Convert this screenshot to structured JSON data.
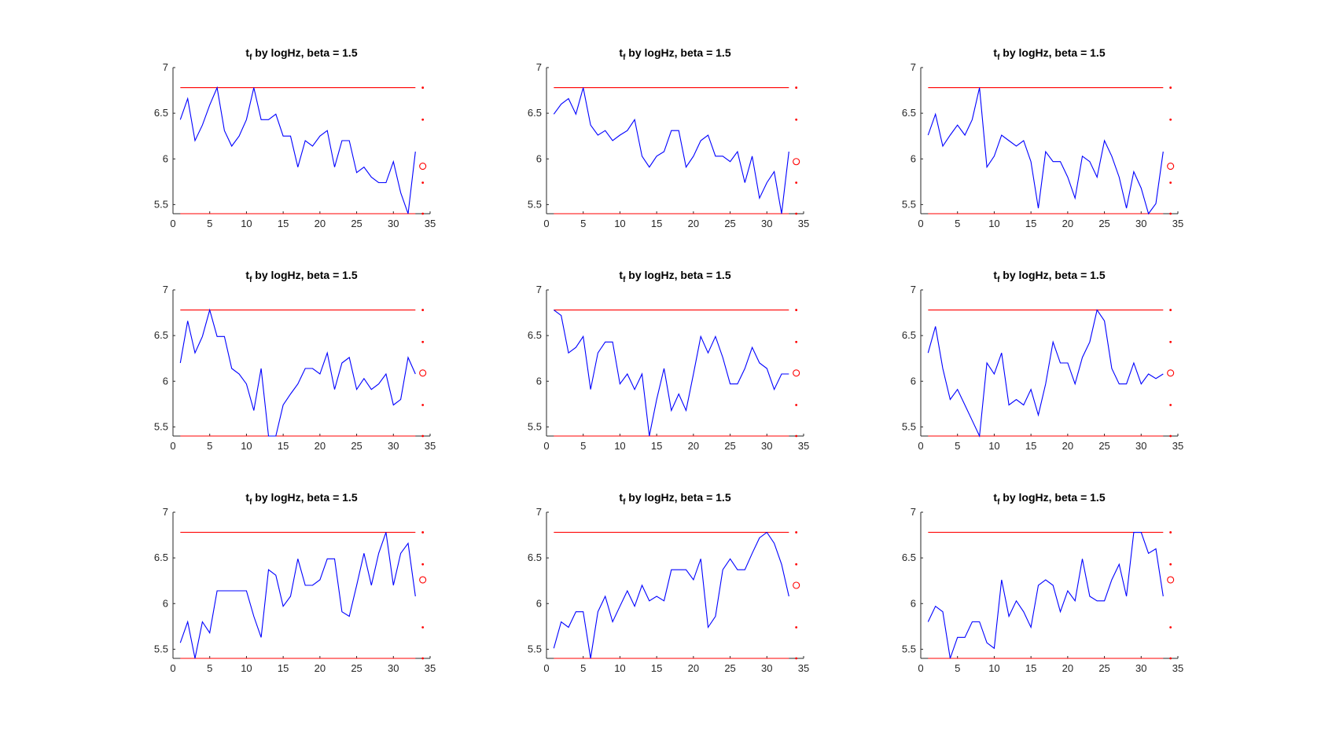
{
  "figure": {
    "background": "#ffffff"
  },
  "colors": {
    "series": "#0000ff",
    "threshold": "#ff0000",
    "axis": "#262626",
    "marker": "#ff0000"
  },
  "chart_data": [
    {
      "type": "line",
      "title": "t_f by logHz, beta = 1.5",
      "title_parts": {
        "base": "t",
        "sub": "f",
        "rest": " by logHz, beta = 1.5"
      },
      "xlim": [
        0,
        35
      ],
      "ylim": [
        5.4,
        7
      ],
      "xticks": [
        0,
        5,
        10,
        15,
        20,
        25,
        30,
        35
      ],
      "yticks": [
        5.5,
        6,
        6.5,
        7
      ],
      "xtick_labels": [
        "0",
        "5",
        "10",
        "15",
        "20",
        "25",
        "30",
        "35"
      ],
      "ytick_labels": [
        "5.5",
        "6",
        "6.5",
        "7"
      ],
      "x": [
        1,
        2,
        3,
        4,
        5,
        6,
        7,
        8,
        9,
        10,
        11,
        12,
        13,
        14,
        15,
        16,
        17,
        18,
        19,
        20,
        21,
        22,
        23,
        24,
        25,
        26,
        27,
        28,
        29,
        30,
        31,
        32,
        33
      ],
      "series": [
        {
          "values": [
            6.43,
            6.66,
            6.2,
            6.37,
            6.59,
            6.78,
            6.31,
            6.14,
            6.25,
            6.43,
            6.78,
            6.43,
            6.43,
            6.49,
            6.25,
            6.25,
            5.91,
            6.2,
            6.14,
            6.25,
            6.31,
            5.91,
            6.2,
            6.2,
            5.85,
            5.91,
            5.8,
            5.74,
            5.74,
            5.97,
            5.63,
            5.4,
            6.08
          ],
          "color": "#0000ff"
        }
      ],
      "hlines": [
        6.78,
        5.4
      ],
      "side_x": 34,
      "side_dots": [
        6.78,
        6.43,
        5.74,
        5.4
      ],
      "side_circle": 5.92
    },
    {
      "type": "line",
      "title": "t_f by logHz, beta = 1.5",
      "title_parts": {
        "base": "t",
        "sub": "f",
        "rest": " by logHz, beta = 1.5"
      },
      "xlim": [
        0,
        35
      ],
      "ylim": [
        5.4,
        7
      ],
      "xticks": [
        0,
        5,
        10,
        15,
        20,
        25,
        30,
        35
      ],
      "yticks": [
        5.5,
        6,
        6.5,
        7
      ],
      "xtick_labels": [
        "0",
        "5",
        "10",
        "15",
        "20",
        "25",
        "30",
        "35"
      ],
      "ytick_labels": [
        "5.5",
        "6",
        "6.5",
        "7"
      ],
      "x": [
        1,
        2,
        3,
        4,
        5,
        6,
        7,
        8,
        9,
        10,
        11,
        12,
        13,
        14,
        15,
        16,
        17,
        18,
        19,
        20,
        21,
        22,
        23,
        24,
        25,
        26,
        27,
        28,
        29,
        30,
        31,
        32,
        33
      ],
      "series": [
        {
          "values": [
            6.49,
            6.6,
            6.66,
            6.49,
            6.78,
            6.37,
            6.26,
            6.31,
            6.2,
            6.26,
            6.31,
            6.43,
            6.03,
            5.91,
            6.03,
            6.08,
            6.31,
            6.31,
            5.91,
            6.03,
            6.2,
            6.26,
            6.03,
            6.03,
            5.97,
            6.08,
            5.74,
            6.03,
            5.57,
            5.74,
            5.86,
            5.4,
            6.08
          ],
          "color": "#0000ff"
        }
      ],
      "hlines": [
        6.78,
        5.4
      ],
      "side_x": 34,
      "side_dots": [
        6.78,
        6.43,
        5.74,
        5.4
      ],
      "side_circle": 5.97
    },
    {
      "type": "line",
      "title": "t_f by logHz, beta = 1.5",
      "title_parts": {
        "base": "t",
        "sub": "f",
        "rest": " by logHz, beta = 1.5"
      },
      "xlim": [
        0,
        35
      ],
      "ylim": [
        5.4,
        7
      ],
      "xticks": [
        0,
        5,
        10,
        15,
        20,
        25,
        30,
        35
      ],
      "yticks": [
        5.5,
        6,
        6.5,
        7
      ],
      "xtick_labels": [
        "0",
        "5",
        "10",
        "15",
        "20",
        "25",
        "30",
        "35"
      ],
      "ytick_labels": [
        "5.5",
        "6",
        "6.5",
        "7"
      ],
      "x": [
        1,
        2,
        3,
        4,
        5,
        6,
        7,
        8,
        9,
        10,
        11,
        12,
        13,
        14,
        15,
        16,
        17,
        18,
        19,
        20,
        21,
        22,
        23,
        24,
        25,
        26,
        27,
        28,
        29,
        30,
        31,
        32,
        33
      ],
      "series": [
        {
          "values": [
            6.26,
            6.49,
            6.14,
            6.26,
            6.37,
            6.26,
            6.43,
            6.78,
            5.91,
            6.03,
            6.26,
            6.2,
            6.14,
            6.2,
            5.97,
            5.46,
            6.08,
            5.97,
            5.97,
            5.8,
            5.57,
            6.03,
            5.97,
            5.8,
            6.2,
            6.03,
            5.8,
            5.46,
            5.86,
            5.68,
            5.4,
            5.51,
            6.08
          ],
          "color": "#0000ff"
        }
      ],
      "hlines": [
        6.78,
        5.4
      ],
      "side_x": 34,
      "side_dots": [
        6.78,
        6.43,
        5.74,
        5.4
      ],
      "side_circle": 5.92
    },
    {
      "type": "line",
      "title": "t_f by logHz, beta = 1.5",
      "title_parts": {
        "base": "t",
        "sub": "f",
        "rest": " by logHz, beta = 1.5"
      },
      "xlim": [
        0,
        35
      ],
      "ylim": [
        5.4,
        7
      ],
      "xticks": [
        0,
        5,
        10,
        15,
        20,
        25,
        30,
        35
      ],
      "yticks": [
        5.5,
        6,
        6.5,
        7
      ],
      "xtick_labels": [
        "0",
        "5",
        "10",
        "15",
        "20",
        "25",
        "30",
        "35"
      ],
      "ytick_labels": [
        "5.5",
        "6",
        "6.5",
        "7"
      ],
      "x": [
        1,
        2,
        3,
        4,
        5,
        6,
        7,
        8,
        9,
        10,
        11,
        12,
        13,
        14,
        15,
        16,
        17,
        18,
        19,
        20,
        21,
        22,
        23,
        24,
        25,
        26,
        27,
        28,
        29,
        30,
        31,
        32,
        33
      ],
      "series": [
        {
          "values": [
            6.2,
            6.66,
            6.31,
            6.49,
            6.78,
            6.49,
            6.49,
            6.14,
            6.08,
            5.97,
            5.68,
            6.14,
            5.4,
            5.4,
            5.74,
            5.86,
            5.97,
            6.14,
            6.14,
            6.08,
            6.31,
            5.91,
            6.2,
            6.26,
            5.91,
            6.03,
            5.91,
            5.97,
            6.08,
            5.74,
            5.8,
            6.26,
            6.08
          ],
          "color": "#0000ff"
        }
      ],
      "hlines": [
        6.78,
        5.4
      ],
      "side_x": 34,
      "side_dots": [
        6.78,
        6.43,
        5.74,
        5.4
      ],
      "side_circle": 6.09
    },
    {
      "type": "line",
      "title": "t_f by logHz, beta = 1.5",
      "title_parts": {
        "base": "t",
        "sub": "f",
        "rest": " by logHz, beta = 1.5"
      },
      "xlim": [
        0,
        35
      ],
      "ylim": [
        5.4,
        7
      ],
      "xticks": [
        0,
        5,
        10,
        15,
        20,
        25,
        30,
        35
      ],
      "yticks": [
        5.5,
        6,
        6.5,
        7
      ],
      "xtick_labels": [
        "0",
        "5",
        "10",
        "15",
        "20",
        "25",
        "30",
        "35"
      ],
      "ytick_labels": [
        "5.5",
        "6",
        "6.5",
        "7"
      ],
      "x": [
        1,
        2,
        3,
        4,
        5,
        6,
        7,
        8,
        9,
        10,
        11,
        12,
        13,
        14,
        15,
        16,
        17,
        18,
        19,
        20,
        21,
        22,
        23,
        24,
        25,
        26,
        27,
        28,
        29,
        30,
        31,
        32,
        33
      ],
      "series": [
        {
          "values": [
            6.78,
            6.72,
            6.31,
            6.37,
            6.49,
            5.91,
            6.31,
            6.43,
            6.43,
            5.97,
            6.08,
            5.91,
            6.08,
            5.4,
            5.8,
            6.14,
            5.68,
            5.86,
            5.68,
            6.08,
            6.49,
            6.31,
            6.49,
            6.26,
            5.97,
            5.97,
            6.14,
            6.37,
            6.2,
            6.14,
            5.91,
            6.08,
            6.08
          ],
          "color": "#0000ff"
        }
      ],
      "hlines": [
        6.78,
        5.4
      ],
      "side_x": 34,
      "side_dots": [
        6.78,
        6.43,
        5.74,
        5.4
      ],
      "side_circle": 6.09
    },
    {
      "type": "line",
      "title": "t_f by logHz, beta = 1.5",
      "title_parts": {
        "base": "t",
        "sub": "f",
        "rest": " by logHz, beta = 1.5"
      },
      "xlim": [
        0,
        35
      ],
      "ylim": [
        5.4,
        7
      ],
      "xticks": [
        0,
        5,
        10,
        15,
        20,
        25,
        30,
        35
      ],
      "yticks": [
        5.5,
        6,
        6.5,
        7
      ],
      "xtick_labels": [
        "0",
        "5",
        "10",
        "15",
        "20",
        "25",
        "30",
        "35"
      ],
      "ytick_labels": [
        "5.5",
        "6",
        "6.5",
        "7"
      ],
      "x": [
        1,
        2,
        3,
        4,
        5,
        6,
        7,
        8,
        9,
        10,
        11,
        12,
        13,
        14,
        15,
        16,
        17,
        18,
        19,
        20,
        21,
        22,
        23,
        24,
        25,
        26,
        27,
        28,
        29,
        30,
        31,
        32,
        33
      ],
      "series": [
        {
          "values": [
            6.31,
            6.6,
            6.14,
            5.8,
            5.91,
            5.74,
            5.57,
            5.4,
            6.2,
            6.08,
            6.31,
            5.74,
            5.8,
            5.74,
            5.91,
            5.63,
            5.97,
            6.43,
            6.2,
            6.2,
            5.97,
            6.26,
            6.43,
            6.78,
            6.66,
            6.14,
            5.97,
            5.97,
            6.2,
            5.97,
            6.08,
            6.03,
            6.08
          ],
          "color": "#0000ff"
        }
      ],
      "hlines": [
        6.78,
        5.4
      ],
      "side_x": 34,
      "side_dots": [
        6.78,
        6.43,
        5.74,
        5.4
      ],
      "side_circle": 6.09
    },
    {
      "type": "line",
      "title": "t_f by logHz, beta = 1.5",
      "title_parts": {
        "base": "t",
        "sub": "f",
        "rest": " by logHz, beta = 1.5"
      },
      "xlim": [
        0,
        35
      ],
      "ylim": [
        5.4,
        7
      ],
      "xticks": [
        0,
        5,
        10,
        15,
        20,
        25,
        30,
        35
      ],
      "yticks": [
        5.5,
        6,
        6.5,
        7
      ],
      "xtick_labels": [
        "0",
        "5",
        "10",
        "15",
        "20",
        "25",
        "30",
        "35"
      ],
      "ytick_labels": [
        "5.5",
        "6",
        "6.5",
        "7"
      ],
      "x": [
        1,
        2,
        3,
        4,
        5,
        6,
        7,
        8,
        9,
        10,
        11,
        12,
        13,
        14,
        15,
        16,
        17,
        18,
        19,
        20,
        21,
        22,
        23,
        24,
        25,
        26,
        27,
        28,
        29,
        30,
        31,
        32,
        33
      ],
      "series": [
        {
          "values": [
            5.57,
            5.8,
            5.4,
            5.8,
            5.68,
            6.14,
            6.14,
            6.14,
            6.14,
            6.14,
            5.86,
            5.63,
            6.37,
            6.31,
            5.97,
            6.08,
            6.49,
            6.2,
            6.2,
            6.26,
            6.49,
            6.49,
            5.91,
            5.86,
            6.2,
            6.55,
            6.2,
            6.55,
            6.78,
            6.2,
            6.55,
            6.66,
            6.08
          ],
          "color": "#0000ff"
        }
      ],
      "hlines": [
        6.78,
        5.4
      ],
      "side_x": 34,
      "side_dots": [
        6.78,
        6.43,
        5.74,
        5.4
      ],
      "side_circle": 6.26
    },
    {
      "type": "line",
      "title": "t_f by logHz, beta = 1.5",
      "title_parts": {
        "base": "t",
        "sub": "f",
        "rest": " by logHz, beta = 1.5"
      },
      "xlim": [
        0,
        35
      ],
      "ylim": [
        5.4,
        7
      ],
      "xticks": [
        0,
        5,
        10,
        15,
        20,
        25,
        30,
        35
      ],
      "yticks": [
        5.5,
        6,
        6.5,
        7
      ],
      "xtick_labels": [
        "0",
        "5",
        "10",
        "15",
        "20",
        "25",
        "30",
        "35"
      ],
      "ytick_labels": [
        "5.5",
        "6",
        "6.5",
        "7"
      ],
      "x": [
        1,
        2,
        3,
        4,
        5,
        6,
        7,
        8,
        9,
        10,
        11,
        12,
        13,
        14,
        15,
        16,
        17,
        18,
        19,
        20,
        21,
        22,
        23,
        24,
        25,
        26,
        27,
        28,
        29,
        30,
        31,
        32,
        33
      ],
      "series": [
        {
          "values": [
            5.51,
            5.8,
            5.74,
            5.91,
            5.91,
            5.4,
            5.91,
            6.08,
            5.8,
            5.97,
            6.14,
            5.97,
            6.2,
            6.03,
            6.08,
            6.03,
            6.37,
            6.37,
            6.37,
            6.26,
            6.49,
            5.74,
            5.86,
            6.37,
            6.49,
            6.37,
            6.37,
            6.55,
            6.72,
            6.78,
            6.66,
            6.43,
            6.08
          ],
          "color": "#0000ff"
        }
      ],
      "hlines": [
        6.78,
        5.4
      ],
      "side_x": 34,
      "side_dots": [
        6.78,
        6.43,
        5.74,
        5.4
      ],
      "side_circle": 6.2
    },
    {
      "type": "line",
      "title": "t_f by logHz, beta = 1.5",
      "title_parts": {
        "base": "t",
        "sub": "f",
        "rest": " by logHz, beta = 1.5"
      },
      "xlim": [
        0,
        35
      ],
      "ylim": [
        5.4,
        7
      ],
      "xticks": [
        0,
        5,
        10,
        15,
        20,
        25,
        30,
        35
      ],
      "yticks": [
        5.5,
        6,
        6.5,
        7
      ],
      "xtick_labels": [
        "0",
        "5",
        "10",
        "15",
        "20",
        "25",
        "30",
        "35"
      ],
      "ytick_labels": [
        "5.5",
        "6",
        "6.5",
        "7"
      ],
      "x": [
        1,
        2,
        3,
        4,
        5,
        6,
        7,
        8,
        9,
        10,
        11,
        12,
        13,
        14,
        15,
        16,
        17,
        18,
        19,
        20,
        21,
        22,
        23,
        24,
        25,
        26,
        27,
        28,
        29,
        30,
        31,
        32,
        33
      ],
      "series": [
        {
          "values": [
            5.8,
            5.97,
            5.91,
            5.4,
            5.63,
            5.63,
            5.8,
            5.8,
            5.57,
            5.51,
            6.26,
            5.86,
            6.03,
            5.91,
            5.74,
            6.2,
            6.26,
            6.2,
            5.91,
            6.14,
            6.03,
            6.49,
            6.08,
            6.03,
            6.03,
            6.26,
            6.43,
            6.08,
            6.78,
            6.78,
            6.55,
            6.6,
            6.08
          ],
          "color": "#0000ff"
        }
      ],
      "hlines": [
        6.78,
        5.4
      ],
      "side_x": 34,
      "side_dots": [
        6.78,
        6.43,
        5.74,
        5.4
      ],
      "side_circle": 6.26
    }
  ]
}
